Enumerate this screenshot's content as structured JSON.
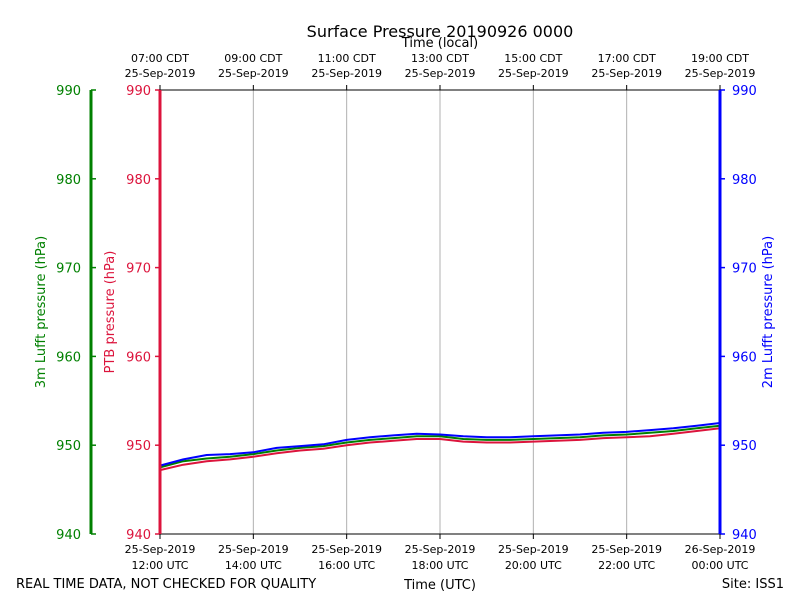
{
  "chart_data": {
    "type": "line",
    "title": "Surface Pressure 20190926 0000",
    "xlabel_bottom": "Time (UTC)",
    "xlabel_top": "Time (local)",
    "ylabel_green": "3m Lufft pressure (hPa)",
    "ylabel_red": "PTB pressure (hPa)",
    "ylabel_blue": "2m Lufft pressure (hPa)",
    "ylim": [
      940,
      990
    ],
    "yticks": [
      940,
      950,
      960,
      970,
      980,
      990
    ],
    "xlim_hours": [
      0,
      12
    ],
    "x_unit": "hours since 25-Sep-2019 12:00 UTC",
    "xticks_bottom": [
      {
        "hour": 0,
        "line1": "25-Sep-2019",
        "line2": "12:00 UTC"
      },
      {
        "hour": 2,
        "line1": "25-Sep-2019",
        "line2": "14:00 UTC"
      },
      {
        "hour": 4,
        "line1": "25-Sep-2019",
        "line2": "16:00 UTC"
      },
      {
        "hour": 6,
        "line1": "25-Sep-2019",
        "line2": "18:00 UTC"
      },
      {
        "hour": 8,
        "line1": "25-Sep-2019",
        "line2": "20:00 UTC"
      },
      {
        "hour": 10,
        "line1": "25-Sep-2019",
        "line2": "22:00 UTC"
      },
      {
        "hour": 12,
        "line1": "26-Sep-2019",
        "line2": "00:00 UTC"
      }
    ],
    "xticks_top": [
      {
        "hour": 0,
        "line1": "07:00 CDT",
        "line2": "25-Sep-2019"
      },
      {
        "hour": 2,
        "line1": "09:00 CDT",
        "line2": "25-Sep-2019"
      },
      {
        "hour": 4,
        "line1": "11:00 CDT",
        "line2": "25-Sep-2019"
      },
      {
        "hour": 6,
        "line1": "13:00 CDT",
        "line2": "25-Sep-2019"
      },
      {
        "hour": 8,
        "line1": "15:00 CDT",
        "line2": "25-Sep-2019"
      },
      {
        "hour": 10,
        "line1": "17:00 CDT",
        "line2": "25-Sep-2019"
      },
      {
        "hour": 12,
        "line1": "19:00 CDT",
        "line2": "25-Sep-2019"
      }
    ],
    "grid": true,
    "series": [
      {
        "name": "PTB pressure",
        "color": "#dc143c",
        "x": [
          0,
          0.5,
          1,
          1.5,
          2,
          2.5,
          3,
          3.5,
          4,
          4.5,
          5,
          5.5,
          6,
          6.5,
          7,
          7.5,
          8,
          8.5,
          9,
          9.5,
          10,
          10.5,
          11,
          11.5,
          12
        ],
        "values": [
          947.2,
          947.8,
          948.2,
          948.4,
          948.7,
          949.1,
          949.4,
          949.6,
          950.0,
          950.3,
          950.5,
          950.7,
          950.7,
          950.4,
          950.3,
          950.3,
          950.4,
          950.5,
          950.6,
          950.8,
          950.9,
          951.0,
          951.3,
          951.6,
          951.9
        ]
      },
      {
        "name": "3m Lufft pressure",
        "color": "#008000",
        "x": [
          0,
          0.5,
          1,
          1.5,
          2,
          2.5,
          3,
          3.5,
          4,
          4.5,
          5,
          5.5,
          6,
          6.5,
          7,
          7.5,
          8,
          8.5,
          9,
          9.5,
          10,
          10.5,
          11,
          11.5,
          12
        ],
        "values": [
          947.5,
          948.2,
          948.5,
          948.7,
          949.0,
          949.4,
          949.7,
          949.9,
          950.3,
          950.6,
          950.8,
          951.0,
          951.0,
          950.7,
          950.6,
          950.6,
          950.7,
          950.8,
          950.9,
          951.1,
          951.2,
          951.4,
          951.6,
          951.9,
          952.2
        ]
      },
      {
        "name": "2m Lufft pressure",
        "color": "#0000ff",
        "x": [
          0,
          0.5,
          1,
          1.5,
          2,
          2.5,
          3,
          3.5,
          4,
          4.5,
          5,
          5.5,
          6,
          6.5,
          7,
          7.5,
          8,
          8.5,
          9,
          9.5,
          10,
          10.5,
          11,
          11.5,
          12
        ],
        "values": [
          947.7,
          948.4,
          948.9,
          949.0,
          949.2,
          949.7,
          949.9,
          950.1,
          950.6,
          950.9,
          951.1,
          951.3,
          951.2,
          951.0,
          950.9,
          950.9,
          951.0,
          951.1,
          951.2,
          951.4,
          951.5,
          951.7,
          951.9,
          952.2,
          952.5
        ]
      }
    ]
  },
  "footer": {
    "disclaimer": "REAL TIME DATA, NOT CHECKED FOR QUALITY",
    "site": "Site: ISS1"
  },
  "colors": {
    "ptb": "#dc143c",
    "lufft3m": "#008000",
    "lufft2m": "#0000ff",
    "grid": "#b0b0b0",
    "text": "#000000"
  }
}
